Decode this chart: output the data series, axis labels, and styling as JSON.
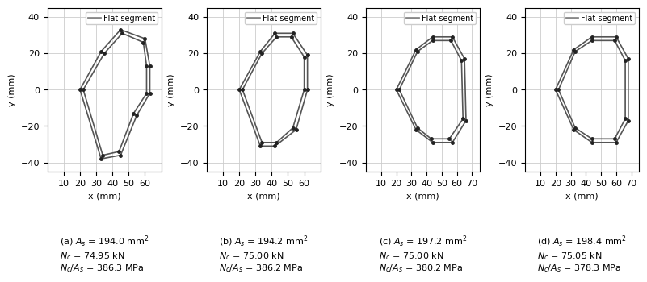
{
  "subplots": [
    {
      "label": "(a) $A_s$ = 194.0 mm$^2$\n$N_c$ = 74.95 kN\n$N_c/A_s$ = 386.3 MPa",
      "xlim": [
        0,
        70
      ],
      "xticks": [
        10,
        20,
        30,
        40,
        50,
        60
      ],
      "ylim": [
        -45,
        45
      ],
      "yticks": [
        -40,
        -20,
        0,
        20,
        40
      ],
      "shape_outer": [
        [
          20,
          0
        ],
        [
          33,
          21
        ],
        [
          45,
          33
        ],
        [
          60,
          28
        ],
        [
          63,
          13
        ],
        [
          63,
          -2
        ],
        [
          55,
          -14
        ],
        [
          45,
          -36
        ],
        [
          33,
          -38
        ],
        [
          20,
          0
        ]
      ],
      "shape_inner": [
        [
          22,
          0
        ],
        [
          35,
          20
        ],
        [
          46,
          31
        ],
        [
          59,
          26
        ],
        [
          61,
          13
        ],
        [
          61,
          -2
        ],
        [
          53,
          -13
        ],
        [
          44,
          -34
        ],
        [
          34,
          -36
        ],
        [
          22,
          0
        ]
      ]
    },
    {
      "label": "(b) $A_s$ = 194.2 mm$^2$\n$N_c$ = 75.00 kN\n$N_c/A_s$ = 386.2 MPa",
      "xlim": [
        0,
        70
      ],
      "xticks": [
        10,
        20,
        30,
        40,
        50,
        60
      ],
      "ylim": [
        -45,
        45
      ],
      "yticks": [
        -40,
        -20,
        0,
        20,
        40
      ],
      "shape_outer": [
        [
          20,
          0
        ],
        [
          33,
          21
        ],
        [
          42,
          31
        ],
        [
          53,
          31
        ],
        [
          62,
          19
        ],
        [
          62,
          0
        ],
        [
          55,
          -22
        ],
        [
          42,
          -31
        ],
        [
          33,
          -31
        ],
        [
          20,
          0
        ]
      ],
      "shape_inner": [
        [
          22,
          0
        ],
        [
          34,
          20
        ],
        [
          43,
          29
        ],
        [
          52,
          29
        ],
        [
          60,
          18
        ],
        [
          60,
          0
        ],
        [
          53,
          -21
        ],
        [
          43,
          -29
        ],
        [
          34,
          -29
        ],
        [
          22,
          0
        ]
      ]
    },
    {
      "label": "(c) $A_s$ = 197.2 mm$^2$\n$N_c$ = 75.00 kN\n$N_c/A_s$ = 380.2 MPa",
      "xlim": [
        0,
        75
      ],
      "xticks": [
        10,
        20,
        30,
        40,
        50,
        60,
        70
      ],
      "ylim": [
        -45,
        45
      ],
      "yticks": [
        -40,
        -20,
        0,
        20,
        40
      ],
      "shape_outer": [
        [
          20,
          0
        ],
        [
          33,
          22
        ],
        [
          44,
          29
        ],
        [
          57,
          29
        ],
        [
          65,
          17
        ],
        [
          66,
          -17
        ],
        [
          57,
          -29
        ],
        [
          44,
          -29
        ],
        [
          33,
          -22
        ],
        [
          20,
          0
        ]
      ],
      "shape_inner": [
        [
          22,
          0
        ],
        [
          34,
          21
        ],
        [
          44,
          27
        ],
        [
          56,
          27
        ],
        [
          63,
          16
        ],
        [
          64,
          -16
        ],
        [
          55,
          -27
        ],
        [
          43,
          -27
        ],
        [
          34,
          -21
        ],
        [
          22,
          0
        ]
      ]
    },
    {
      "label": "(d) $A_s$ = 198.4 mm$^2$\n$N_c$ = 75.05 kN\n$N_c/A_s$ = 378.3 MPa",
      "xlim": [
        0,
        75
      ],
      "xticks": [
        10,
        20,
        30,
        40,
        50,
        60,
        70
      ],
      "ylim": [
        -45,
        45
      ],
      "yticks": [
        -40,
        -20,
        0,
        20,
        40
      ],
      "shape_outer": [
        [
          20,
          0
        ],
        [
          32,
          22
        ],
        [
          44,
          29
        ],
        [
          60,
          29
        ],
        [
          68,
          17
        ],
        [
          68,
          -17
        ],
        [
          60,
          -29
        ],
        [
          44,
          -29
        ],
        [
          32,
          -22
        ],
        [
          20,
          0
        ]
      ],
      "shape_inner": [
        [
          22,
          0
        ],
        [
          33,
          21
        ],
        [
          44,
          27
        ],
        [
          59,
          27
        ],
        [
          66,
          16
        ],
        [
          66,
          -16
        ],
        [
          59,
          -27
        ],
        [
          44,
          -27
        ],
        [
          33,
          -21
        ],
        [
          22,
          0
        ]
      ]
    }
  ],
  "line_color": "#555555",
  "dot_color": "#222222",
  "legend_line_color": "#888888",
  "grid_color": "#cccccc",
  "background_color": "#ffffff",
  "xlabel": "x (mm)",
  "ylabel": "y (mm)",
  "title_fontsize": 9,
  "axis_fontsize": 8,
  "tick_fontsize": 8
}
